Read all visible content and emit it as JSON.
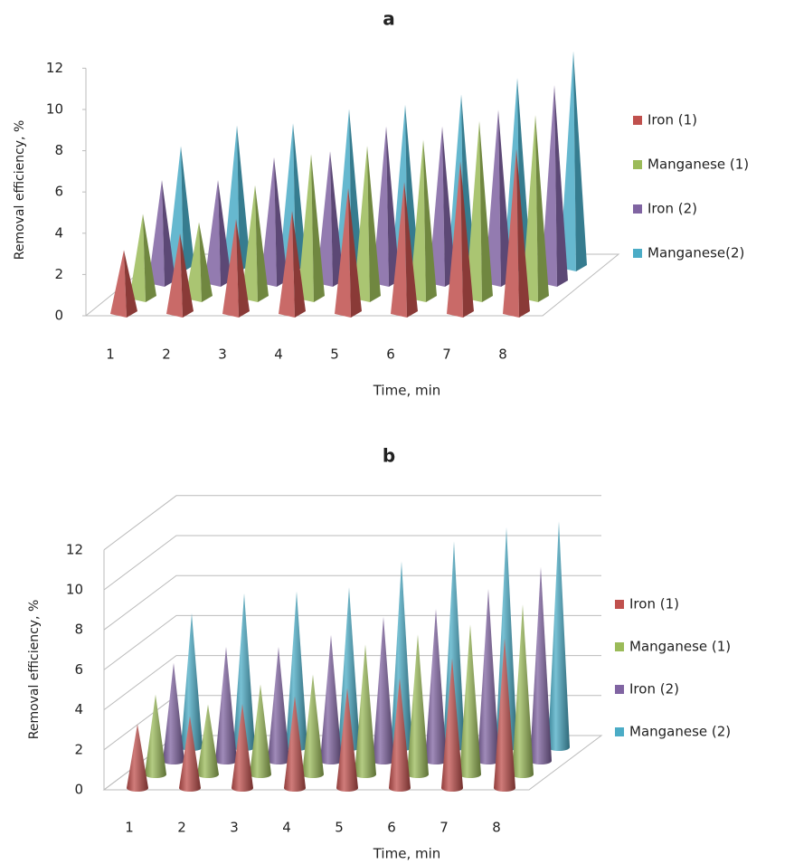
{
  "chart_data": [
    {
      "type": "pyramid",
      "title": "a",
      "x_label": "Time, min",
      "y_label": "Removal efficiency, %",
      "categories": [
        "1",
        "2",
        "3",
        "4",
        "5",
        "6",
        "7",
        "8"
      ],
      "series": [
        {
          "name": "Iron (1)",
          "color": "#c0504d",
          "values": [
            3.1,
            3.9,
            4.6,
            5.0,
            6.1,
            6.4,
            7.4,
            8.0
          ]
        },
        {
          "name": "Manganese (1)",
          "color": "#9bbb59",
          "values": [
            4.1,
            3.7,
            5.5,
            7.0,
            7.4,
            7.7,
            8.6,
            8.9
          ]
        },
        {
          "name": "Iron (2)",
          "color": "#8064a2",
          "values": [
            5.0,
            5.0,
            6.1,
            6.4,
            7.6,
            7.6,
            8.4,
            9.6
          ]
        },
        {
          "name": "Manganese(2)",
          "color": "#4bacc6",
          "values": [
            5.9,
            6.9,
            7.0,
            7.7,
            7.9,
            8.4,
            9.2,
            10.5
          ]
        }
      ],
      "ylim": [
        0,
        12
      ],
      "yticks": [
        0,
        2,
        4,
        6,
        8,
        10,
        12
      ],
      "grid": false,
      "legend": "right"
    },
    {
      "type": "cone",
      "title": "b",
      "x_label": "Time, min",
      "y_label": "Removal efficiency, %",
      "categories": [
        "1",
        "2",
        "3",
        "4",
        "5",
        "6",
        "7",
        "8"
      ],
      "series": [
        {
          "name": "Iron (1)",
          "color": "#c0504d",
          "values": [
            3.2,
            3.6,
            4.2,
            4.6,
            5.0,
            5.5,
            6.5,
            7.5
          ]
        },
        {
          "name": "Manganese (1)",
          "color": "#9bbb59",
          "values": [
            4.0,
            3.5,
            4.5,
            5.0,
            6.5,
            7.0,
            7.5,
            8.5
          ]
        },
        {
          "name": "Iron (2)",
          "color": "#8064a2",
          "values": [
            4.9,
            5.7,
            5.7,
            6.3,
            7.2,
            7.6,
            8.6,
            9.7
          ]
        },
        {
          "name": "Manganese (2)",
          "color": "#4bacc6",
          "values": [
            6.7,
            7.7,
            7.8,
            8.0,
            9.3,
            10.3,
            11.0,
            11.3
          ]
        }
      ],
      "ylim": [
        0,
        12
      ],
      "yticks": [
        0,
        2,
        4,
        6,
        8,
        10,
        12
      ],
      "grid": true,
      "legend": "right"
    }
  ]
}
